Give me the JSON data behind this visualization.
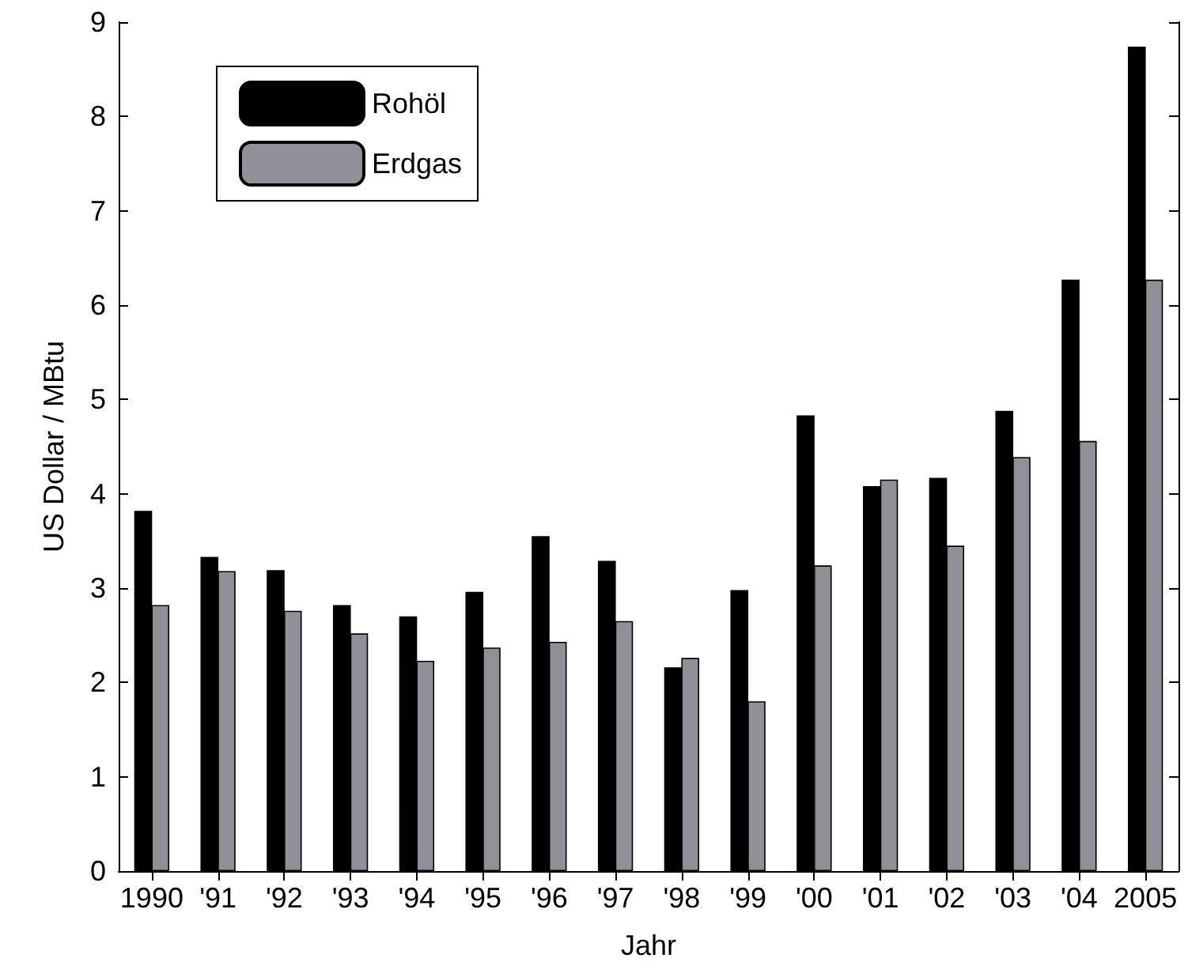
{
  "chart_data": {
    "type": "bar",
    "xlabel": "Jahr",
    "ylabel": "US Dollar / MBtu",
    "categories": [
      "1990",
      "'91",
      "'92",
      "'93",
      "'94",
      "'95",
      "'96",
      "'97",
      "'98",
      "'99",
      "'00",
      "'01",
      "'02",
      "'03",
      "'04",
      "2005"
    ],
    "series": [
      {
        "name": "Rohöl",
        "color": "#000000",
        "values": [
          3.82,
          3.33,
          3.19,
          2.82,
          2.7,
          2.96,
          3.55,
          3.29,
          2.16,
          2.98,
          4.83,
          4.08,
          4.17,
          4.88,
          6.27,
          8.74
        ]
      },
      {
        "name": "Erdgas",
        "color": "#909098",
        "values": [
          2.82,
          3.18,
          2.76,
          2.52,
          2.23,
          2.37,
          2.43,
          2.65,
          2.26,
          1.8,
          3.24,
          4.15,
          3.45,
          4.39,
          4.56,
          6.27
        ]
      }
    ],
    "ylim": [
      0,
      9
    ],
    "yticks": [
      0,
      1,
      2,
      3,
      4,
      5,
      6,
      7,
      8,
      9
    ],
    "grid": false,
    "legend": "top left"
  }
}
